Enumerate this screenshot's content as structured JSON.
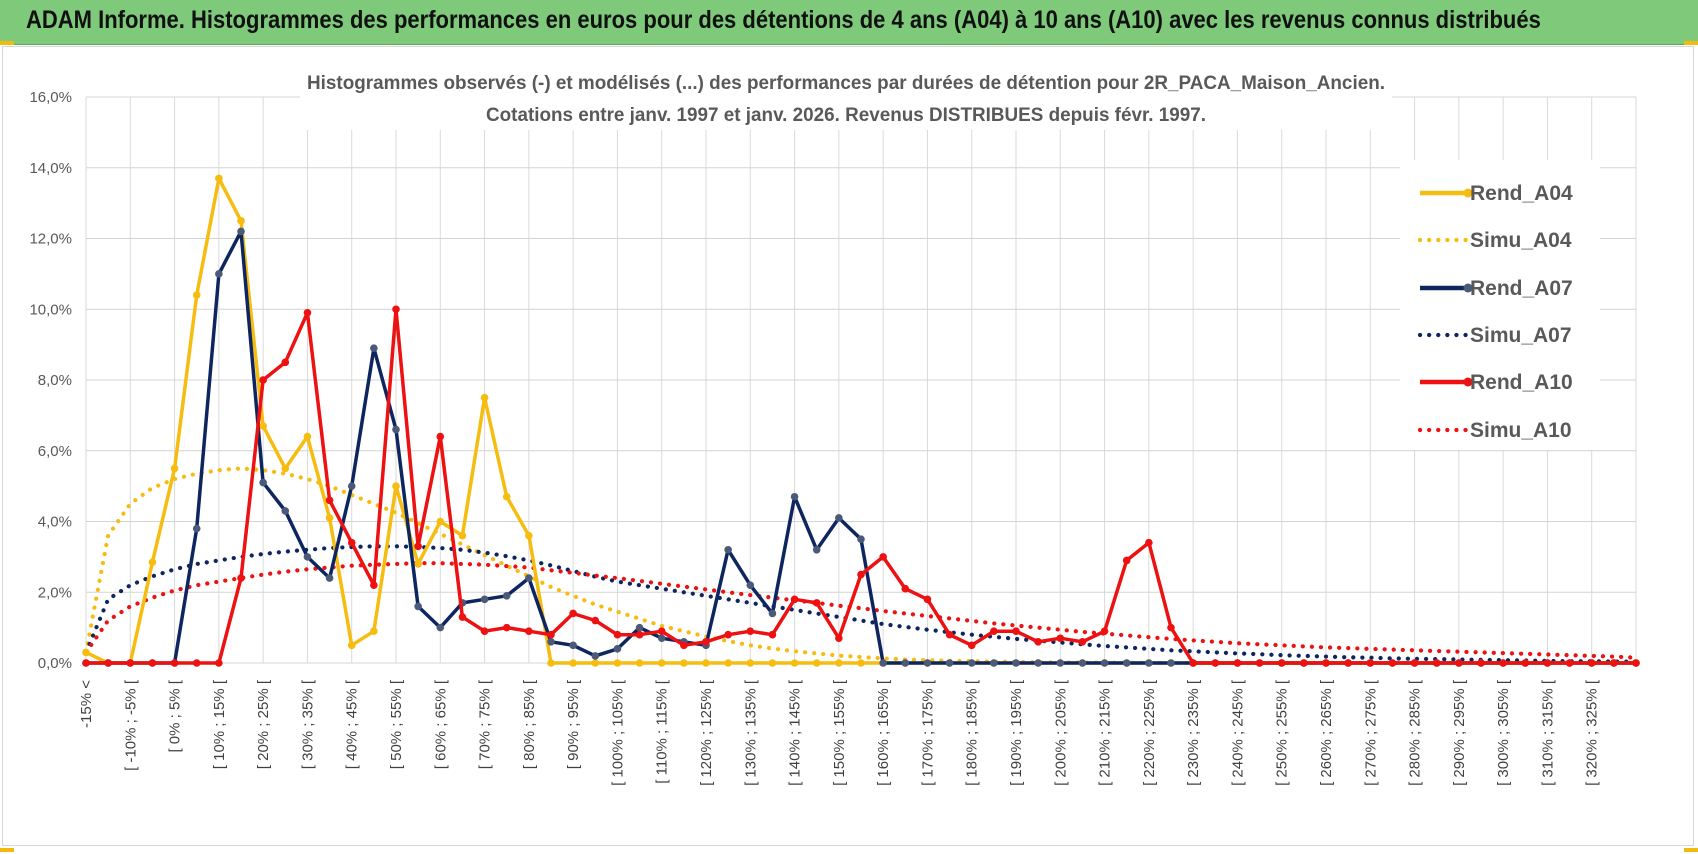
{
  "banner": {
    "title": "ADAM Informe. Histogrammes des performances en euros pour des détentions de 4 ans (A04) à 10 ans (A10) avec les revenus connus distribués"
  },
  "colors": {
    "banner_bg": "#7ec97a",
    "a04": "#f6bc10",
    "a07": "#0d2660",
    "a10": "#ee1111"
  },
  "chart_data": {
    "type": "line",
    "title_line1": "Histogrammes observés (-) et modélisés (...) des performances par durées de détention pour 2R_PACA_Maison_Ancien.",
    "title_line2": "Cotations entre janv. 1997 et janv. 2026. Revenus DISTRIBUES depuis févr. 1997.",
    "ylim": [
      0,
      16
    ],
    "yticks": [
      "0,0%",
      "2,0%",
      "4,0%",
      "6,0%",
      "8,0%",
      "10,0%",
      "12,0%",
      "14,0%",
      "16,0%"
    ],
    "xticks": [
      "-15% <",
      "[ -10% ; -5% [",
      "[ 0% ; 5% [",
      "[ 10% ; 15% [",
      "[ 20% ; 25% [",
      "[ 30% ; 35% [",
      "[ 40% ; 45% [",
      "[ 50% ; 55% [",
      "[ 60% ; 65% [",
      "[ 70% ; 75% [",
      "[ 80% ; 85% [",
      "[ 90% ; 95% [",
      "[ 100% ; 105% [",
      "[ 110% ; 115% [",
      "[ 120% ; 125% [",
      "[ 130% ; 135% [",
      "[ 140% ; 145% [",
      "[ 150% ; 155% [",
      "[ 160% ; 165% [",
      "[ 170% ; 175% [",
      "[ 180% ; 185% [",
      "[ 190% ; 195% [",
      "[ 200% ; 205% [",
      "[ 210% ; 215% [",
      "[ 220% ; 225% [",
      "[ 230% ; 235% [",
      "[ 240% ; 245% [",
      "[ 250% ; 255% [",
      "[ 260% ; 265% [",
      "[ 270% ; 275% [",
      "[ 280% ; 285% [",
      "[ 290% ; 295% [",
      "[ 300% ; 305% [",
      "[ 310% ; 315% [",
      "[ 320% ; 325% ["
    ],
    "n_points": 71,
    "series": [
      {
        "name": "Rend_A04",
        "style": "solid",
        "color": "#f6bc10",
        "values": [
          0.3,
          0,
          0,
          2.85,
          5.5,
          10.4,
          13.7,
          12.5,
          6.7,
          5.5,
          6.4,
          4.1,
          0.5,
          0.9,
          5.0,
          2.8,
          4.0,
          3.6,
          7.5,
          4.7,
          3.6,
          0,
          0,
          0,
          0,
          0,
          0,
          0,
          0,
          0,
          0,
          0,
          0,
          0,
          0,
          0,
          0,
          0,
          0,
          0,
          0,
          0,
          0,
          0,
          0,
          0,
          0,
          0,
          0,
          0,
          0,
          0,
          0,
          0,
          0,
          0,
          0,
          0,
          0,
          0,
          0,
          0,
          0,
          0,
          0,
          0,
          0,
          0,
          0,
          0,
          0
        ]
      },
      {
        "name": "Simu_A04",
        "style": "dotted",
        "color": "#f6bc10",
        "values": [
          0.3,
          3.6,
          4.5,
          4.95,
          5.2,
          5.35,
          5.45,
          5.5,
          5.45,
          5.35,
          5.2,
          5.0,
          4.75,
          4.5,
          4.25,
          3.95,
          3.65,
          3.35,
          3.05,
          2.75,
          2.45,
          2.15,
          1.9,
          1.65,
          1.45,
          1.25,
          1.05,
          0.9,
          0.75,
          0.62,
          0.5,
          0.41,
          0.33,
          0.27,
          0.21,
          0.17,
          0.13,
          0.1,
          0.08,
          0.06,
          0.05,
          0.04,
          0.03,
          0.02,
          0.02,
          0.01,
          0.01,
          0.01,
          0,
          0,
          0,
          0,
          0,
          0,
          0,
          0,
          0,
          0,
          0,
          0,
          0,
          0,
          0,
          0,
          0,
          0,
          0,
          0,
          0,
          0,
          0
        ]
      },
      {
        "name": "Rend_A07",
        "style": "solid",
        "color": "#0d2660",
        "values": [
          0,
          0,
          0,
          0,
          0,
          3.8,
          11.0,
          12.2,
          5.1,
          4.3,
          3.0,
          2.4,
          5.0,
          8.9,
          6.6,
          1.6,
          1.0,
          1.7,
          1.8,
          1.9,
          2.4,
          0.6,
          0.5,
          0.2,
          0.4,
          1.0,
          0.7,
          0.6,
          0.5,
          3.2,
          2.2,
          1.4,
          4.7,
          3.2,
          4.1,
          3.5,
          0,
          0,
          0,
          0,
          0,
          0,
          0,
          0,
          0,
          0,
          0,
          0,
          0,
          0,
          0,
          0,
          0,
          0,
          0,
          0,
          0,
          0,
          0,
          0,
          0,
          0,
          0,
          0,
          0,
          0,
          0,
          0,
          0,
          0,
          0
        ]
      },
      {
        "name": "Simu_A07",
        "style": "dotted",
        "color": "#0d2660",
        "values": [
          0.3,
          1.8,
          2.2,
          2.45,
          2.65,
          2.8,
          2.9,
          3.0,
          3.08,
          3.15,
          3.2,
          3.25,
          3.28,
          3.3,
          3.3,
          3.28,
          3.25,
          3.2,
          3.12,
          3.02,
          2.9,
          2.76,
          2.6,
          2.44,
          2.3,
          2.2,
          2.1,
          2.0,
          1.9,
          1.8,
          1.7,
          1.6,
          1.5,
          1.4,
          1.3,
          1.2,
          1.1,
          1.02,
          0.94,
          0.87,
          0.8,
          0.74,
          0.68,
          0.63,
          0.58,
          0.53,
          0.48,
          0.44,
          0.4,
          0.36,
          0.33,
          0.3,
          0.27,
          0.25,
          0.22,
          0.2,
          0.18,
          0.16,
          0.15,
          0.13,
          0.12,
          0.11,
          0.1,
          0.09,
          0.08,
          0.07,
          0.06,
          0.05,
          0.05,
          0.04,
          0.04
        ]
      },
      {
        "name": "Rend_A10",
        "style": "solid",
        "color": "#ee1111",
        "values": [
          0,
          0,
          0,
          0,
          0,
          0,
          0,
          2.4,
          8.0,
          8.5,
          9.9,
          4.6,
          3.4,
          2.2,
          10.0,
          3.3,
          6.4,
          1.3,
          0.9,
          1.0,
          0.9,
          0.8,
          1.4,
          1.2,
          0.8,
          0.8,
          0.9,
          0.5,
          0.6,
          0.8,
          0.9,
          0.8,
          1.8,
          1.7,
          0.7,
          2.5,
          3.0,
          2.1,
          1.8,
          0.8,
          0.5,
          0.9,
          0.9,
          0.6,
          0.7,
          0.6,
          0.9,
          2.9,
          3.4,
          1.0,
          0,
          0,
          0,
          0,
          0,
          0,
          0,
          0,
          0,
          0,
          0,
          0,
          0,
          0,
          0,
          0,
          0,
          0,
          0,
          0,
          0
        ]
      },
      {
        "name": "Simu_A10",
        "style": "dotted",
        "color": "#ee1111",
        "values": [
          0.3,
          1.2,
          1.6,
          1.85,
          2.05,
          2.2,
          2.3,
          2.4,
          2.5,
          2.58,
          2.65,
          2.7,
          2.75,
          2.78,
          2.8,
          2.82,
          2.82,
          2.8,
          2.78,
          2.74,
          2.7,
          2.62,
          2.55,
          2.47,
          2.4,
          2.32,
          2.24,
          2.16,
          2.08,
          2.0,
          1.92,
          1.85,
          1.77,
          1.7,
          1.62,
          1.55,
          1.47,
          1.4,
          1.33,
          1.26,
          1.19,
          1.12,
          1.06,
          1.0,
          0.94,
          0.88,
          0.83,
          0.78,
          0.73,
          0.68,
          0.64,
          0.6,
          0.56,
          0.53,
          0.5,
          0.47,
          0.44,
          0.42,
          0.4,
          0.38,
          0.36,
          0.34,
          0.32,
          0.3,
          0.28,
          0.26,
          0.24,
          0.22,
          0.2,
          0.18,
          0.15
        ]
      }
    ]
  }
}
